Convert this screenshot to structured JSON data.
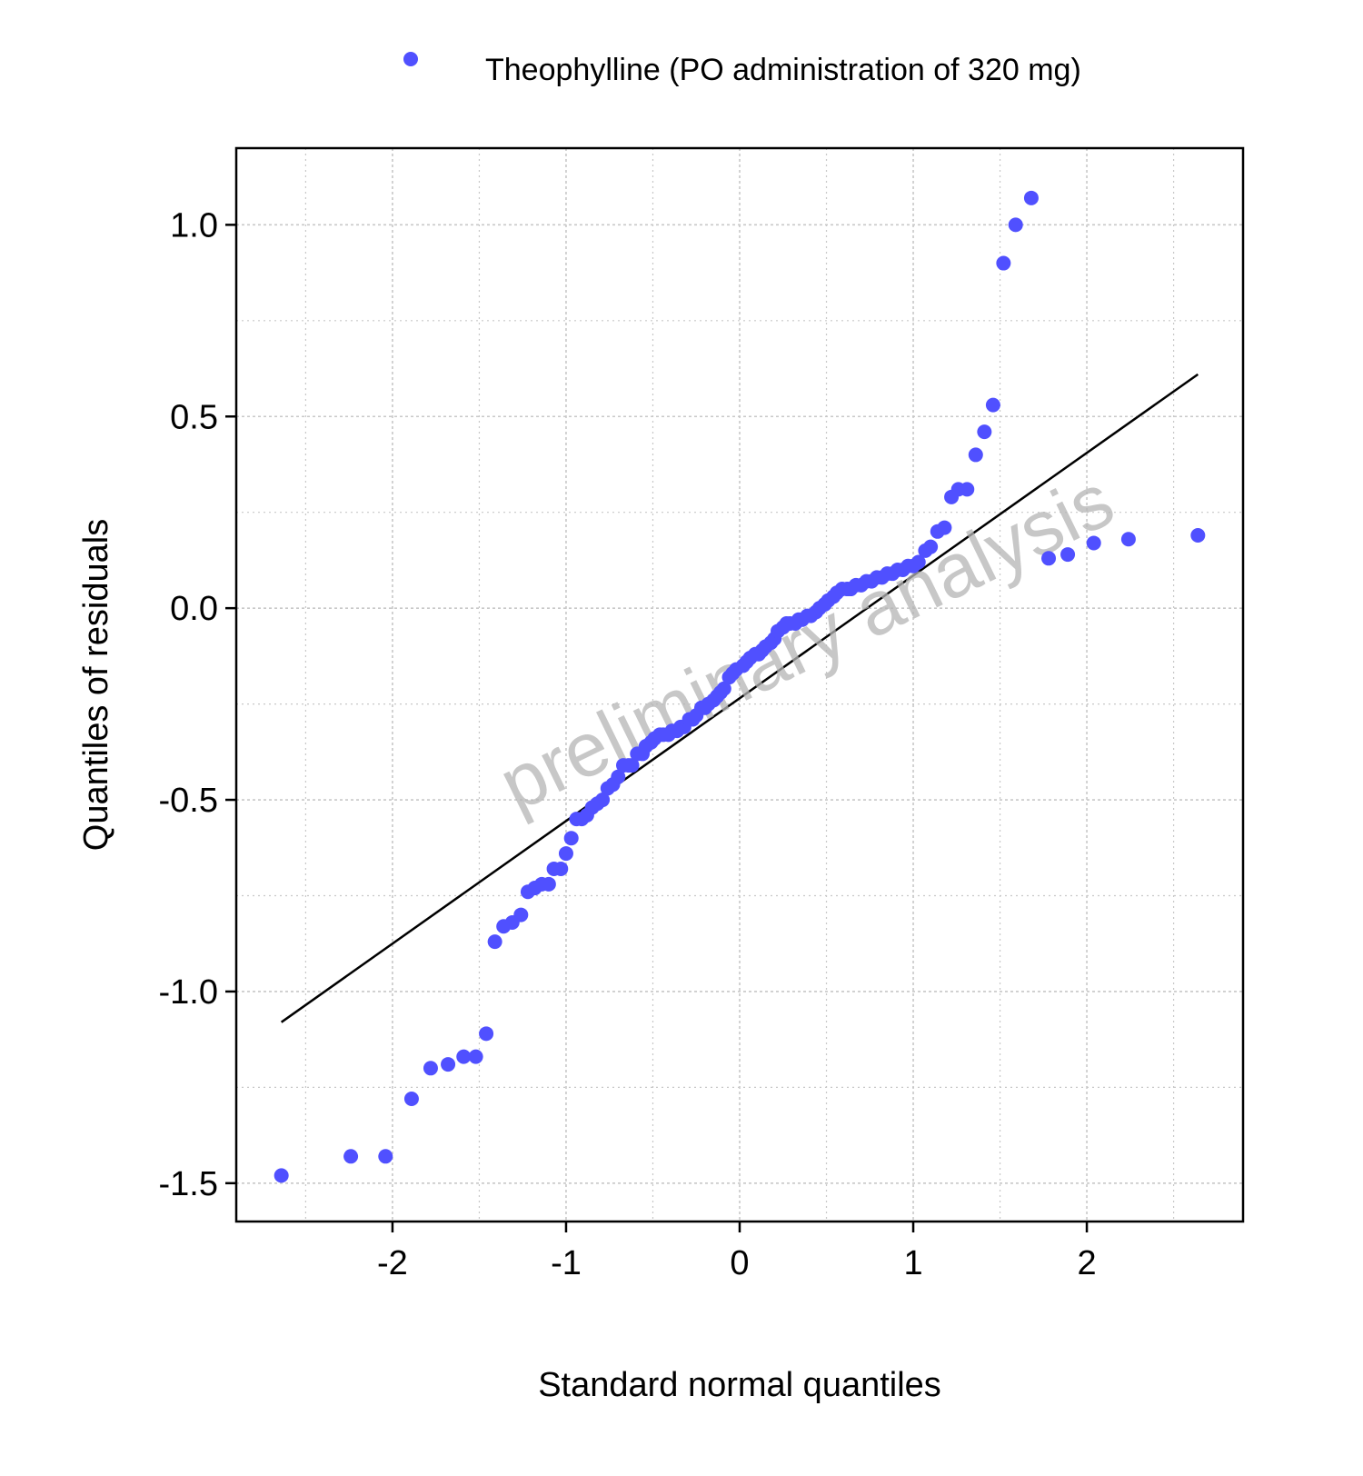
{
  "chart_data": {
    "type": "scatter",
    "title": "",
    "xlabel": "Standard normal quantiles",
    "ylabel": "Quantiles of residuals",
    "xlim": [
      -2.9,
      2.9
    ],
    "ylim": [
      -1.6,
      1.2
    ],
    "x_ticks": [
      -2,
      -1,
      0,
      1,
      2
    ],
    "x_tick_labels": [
      "-2",
      "-1",
      "0",
      "1",
      "2"
    ],
    "y_ticks": [
      -1.5,
      -1.0,
      -0.5,
      0.0,
      0.5,
      1.0
    ],
    "y_tick_labels": [
      "-1.5",
      "-1.0",
      "-0.5",
      "0.0",
      "0.5",
      "1.0"
    ],
    "x_minor_ticks": [
      -2.5,
      -1.5,
      -0.5,
      0.5,
      1.5,
      2.5
    ],
    "y_minor_ticks": [
      -1.25,
      -0.75,
      -0.25,
      0.25,
      0.75
    ],
    "grid": true,
    "legend_position": "top",
    "watermark": "preliminary analysis",
    "colors": {
      "points": "#5050ff",
      "line": "#000000",
      "grid": "#c8c8c8"
    },
    "reference_line": {
      "x": [
        -2.64,
        2.64
      ],
      "y": [
        -1.08,
        0.61
      ]
    },
    "series": [
      {
        "name": "Theophylline (PO administration of 320 mg)",
        "x": [
          -2.64,
          -2.24,
          -2.04,
          -1.89,
          -1.78,
          -1.68,
          -1.59,
          -1.52,
          -1.46,
          -1.41,
          -1.36,
          -1.31,
          -1.26,
          -1.22,
          -1.18,
          -1.14,
          -1.1,
          -1.07,
          -1.03,
          -1.0,
          -0.97,
          -0.94,
          -0.91,
          -0.88,
          -0.85,
          -0.82,
          -0.79,
          -0.76,
          -0.73,
          -0.7,
          -0.67,
          -0.64,
          -0.62,
          -0.59,
          -0.56,
          -0.54,
          -0.51,
          -0.49,
          -0.46,
          -0.44,
          -0.41,
          -0.39,
          -0.36,
          -0.34,
          -0.32,
          -0.29,
          -0.27,
          -0.25,
          -0.22,
          -0.2,
          -0.18,
          -0.15,
          -0.13,
          -0.11,
          -0.09,
          -0.06,
          -0.04,
          -0.02,
          0.02,
          0.04,
          0.06,
          0.09,
          0.11,
          0.13,
          0.15,
          0.18,
          0.2,
          0.22,
          0.25,
          0.27,
          0.29,
          0.32,
          0.34,
          0.36,
          0.39,
          0.41,
          0.44,
          0.46,
          0.49,
          0.51,
          0.54,
          0.56,
          0.59,
          0.62,
          0.64,
          0.67,
          0.7,
          0.73,
          0.76,
          0.79,
          0.82,
          0.85,
          0.88,
          0.91,
          0.94,
          0.97,
          1.0,
          1.03,
          1.07,
          1.1,
          1.14,
          1.18,
          1.22,
          1.26,
          1.31,
          1.36,
          1.41,
          1.46,
          1.52,
          1.59,
          1.68,
          1.78,
          1.89,
          2.04,
          2.24,
          2.64
        ],
        "y": [
          -1.48,
          -1.43,
          -1.43,
          -1.28,
          -1.2,
          -1.19,
          -1.17,
          -1.17,
          -1.11,
          -0.87,
          -0.83,
          -0.82,
          -0.8,
          -0.74,
          -0.73,
          -0.72,
          -0.72,
          -0.68,
          -0.68,
          -0.64,
          -0.6,
          -0.55,
          -0.55,
          -0.54,
          -0.52,
          -0.51,
          -0.5,
          -0.47,
          -0.46,
          -0.44,
          -0.41,
          -0.41,
          -0.41,
          -0.38,
          -0.38,
          -0.36,
          -0.35,
          -0.34,
          -0.33,
          -0.33,
          -0.33,
          -0.32,
          -0.32,
          -0.31,
          -0.31,
          -0.29,
          -0.29,
          -0.28,
          -0.26,
          -0.26,
          -0.25,
          -0.24,
          -0.23,
          -0.22,
          -0.21,
          -0.18,
          -0.17,
          -0.16,
          -0.15,
          -0.14,
          -0.13,
          -0.12,
          -0.12,
          -0.11,
          -0.1,
          -0.09,
          -0.08,
          -0.06,
          -0.05,
          -0.04,
          -0.04,
          -0.04,
          -0.03,
          -0.03,
          -0.02,
          -0.02,
          -0.01,
          0.0,
          0.01,
          0.02,
          0.03,
          0.04,
          0.05,
          0.05,
          0.05,
          0.06,
          0.06,
          0.07,
          0.07,
          0.08,
          0.08,
          0.09,
          0.09,
          0.1,
          0.1,
          0.11,
          0.11,
          0.12,
          0.15,
          0.16,
          0.2,
          0.21,
          0.29,
          0.31,
          0.31,
          0.4,
          0.46,
          0.53,
          0.9,
          1.0,
          1.07,
          0.13,
          0.14,
          0.17,
          0.18,
          0.19
        ]
      }
    ]
  }
}
